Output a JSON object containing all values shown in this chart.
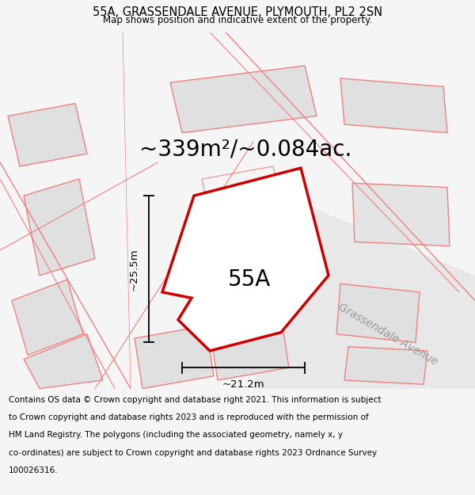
{
  "title": "55A, GRASSENDALE AVENUE, PLYMOUTH, PL2 2SN",
  "subtitle": "Map shows position and indicative extent of the property.",
  "area_text": "~339m²/~0.084ac.",
  "label": "55A",
  "width_label": "~21.2m",
  "height_label": "~25.5m",
  "footer_lines": [
    "Contains OS data © Crown copyright and database right 2021. This information is subject",
    "to Crown copyright and database rights 2023 and is reproduced with the permission of",
    "HM Land Registry. The polygons (including the associated geometry, namely x, y",
    "co-ordinates) are subject to Crown copyright and database rights 2023 Ordnance Survey",
    "100026316."
  ],
  "bg_color": "#f5f5f5",
  "map_bg": "#eeeeee",
  "plot_color": "#cc0000",
  "plot_fill": "#ffffff",
  "neighbor_color": "#f08080",
  "neighbor_fill": "#e0e0e0",
  "road_label": "Grassendale Avenue",
  "title_fontsize": 10.5,
  "subtitle_fontsize": 8.5,
  "area_fontsize": 20,
  "label_fontsize": 20,
  "dim_fontsize": 9.5,
  "road_label_fontsize": 10,
  "footer_fontsize": 7.5
}
